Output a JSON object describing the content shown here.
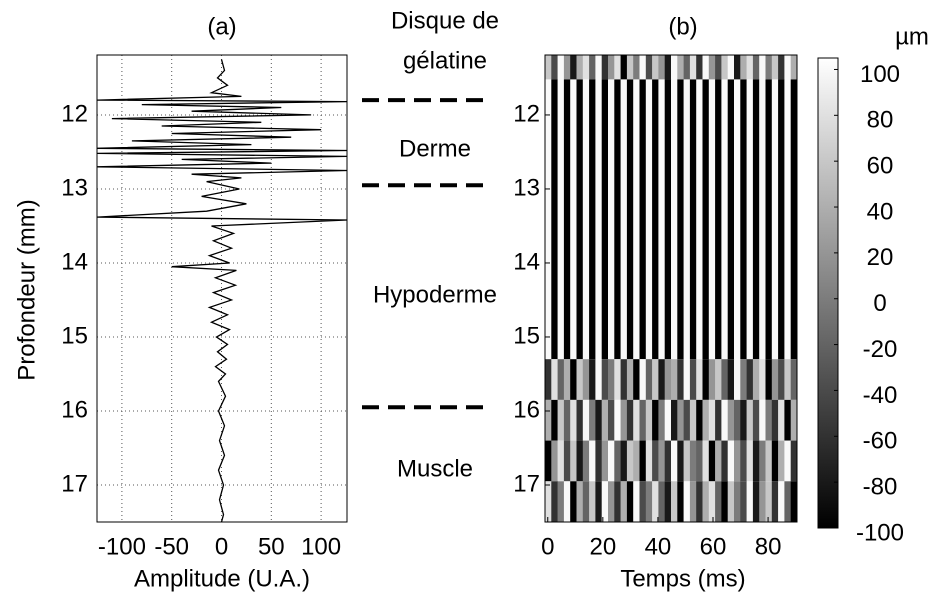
{
  "chart_data": [
    {
      "type": "line",
      "title": "(a)",
      "xlabel": "Amplitude (U.A.)",
      "ylabel": "Profondeur (mm)",
      "xlim": [
        -125,
        126
      ],
      "xticks": [
        -100,
        -50,
        0,
        50,
        100
      ],
      "ylim": [
        11.19,
        17.5
      ],
      "yticks": [
        12,
        13,
        14,
        15,
        16,
        17
      ],
      "grid": true,
      "color": "#000000",
      "x": [
        11.25,
        11.4,
        11.5,
        11.6,
        11.7,
        11.75,
        11.8,
        11.82,
        11.86,
        11.9,
        11.95,
        12.0,
        12.05,
        12.1,
        12.15,
        12.2,
        12.25,
        12.3,
        12.35,
        12.4,
        12.45,
        12.48,
        12.52,
        12.56,
        12.6,
        12.65,
        12.7,
        12.75,
        12.8,
        12.85,
        12.9,
        13.0,
        13.1,
        13.2,
        13.3,
        13.38,
        13.42,
        13.5,
        13.6,
        13.7,
        13.8,
        13.9,
        14.0,
        14.05,
        14.1,
        14.2,
        14.3,
        14.4,
        14.5,
        14.6,
        14.7,
        14.8,
        14.9,
        15.0,
        15.1,
        15.2,
        15.3,
        15.4,
        15.5,
        15.6,
        15.8,
        16.0,
        16.2,
        16.4,
        16.6,
        16.8,
        17.0,
        17.2,
        17.4,
        17.5
      ],
      "values": [
        0,
        3,
        -4,
        6,
        -10,
        20,
        -125,
        126,
        -80,
        60,
        -30,
        90,
        -110,
        40,
        -60,
        100,
        -50,
        70,
        -90,
        30,
        -125,
        126,
        -125,
        126,
        -40,
        50,
        -125,
        126,
        -30,
        20,
        -15,
        18,
        -20,
        25,
        -15,
        -125,
        126,
        -10,
        12,
        -8,
        10,
        -12,
        8,
        -50,
        15,
        -6,
        14,
        -8,
        10,
        -12,
        6,
        -10,
        8,
        -5,
        6,
        -4,
        5,
        -6,
        4,
        -3,
        4,
        -3,
        3,
        -2,
        3,
        -3,
        2,
        -2,
        2,
        0
      ],
      "annotations": [
        "Disque de",
        "gélatine",
        "Derme",
        "Hypoderme",
        "Muscle"
      ],
      "boundaries": [
        11.8,
        12.95,
        15.95
      ]
    },
    {
      "type": "heatmap",
      "title": "(b)",
      "xlabel": "Temps (ms)",
      "xlim": [
        -1,
        90.5
      ],
      "xticks": [
        0,
        20,
        40,
        60,
        80
      ],
      "ylim": [
        11.19,
        17.5
      ],
      "yticks": [
        12,
        13,
        14,
        15,
        16,
        17
      ],
      "y_edges": [
        11.19,
        11.52,
        15.3,
        15.85,
        16.4,
        16.95,
        17.5
      ],
      "z": [
        [
          60,
          -40,
          100,
          20,
          -80,
          40,
          80,
          -20,
          100,
          -60,
          20,
          80,
          -100,
          60,
          0,
          100,
          -40,
          60,
          20,
          -80,
          100,
          40,
          -20,
          80,
          -60,
          100,
          20,
          -40,
          60,
          100,
          -80,
          40,
          80,
          -20,
          100,
          0,
          60,
          -60,
          100,
          40
        ],
        [
          100,
          -100,
          100,
          -100,
          100,
          -100,
          100,
          -100,
          100,
          -100,
          100,
          -100,
          100,
          -100,
          100,
          -100,
          100,
          -100,
          100,
          -100,
          100,
          -100,
          100,
          -100,
          100,
          -100,
          100,
          -100,
          100,
          -100,
          100,
          -100,
          100,
          -100,
          100,
          -100,
          100,
          -100,
          100,
          -100
        ],
        [
          -60,
          80,
          -20,
          40,
          -100,
          60,
          20,
          -80,
          100,
          -40,
          0,
          80,
          -60,
          40,
          -100,
          100,
          -20,
          60,
          -80,
          20,
          40,
          -60,
          100,
          -40,
          80,
          -100,
          20,
          60,
          -20,
          -80,
          100,
          0,
          -60,
          40,
          80,
          -100,
          20,
          -40,
          60,
          -20
        ],
        [
          40,
          -100,
          60,
          -20,
          80,
          -60,
          100,
          0,
          -80,
          40,
          -40,
          100,
          20,
          -60,
          80,
          -20,
          60,
          -100,
          0,
          100,
          -80,
          20,
          -40,
          60,
          -100,
          40,
          80,
          -60,
          100,
          20,
          -20,
          -80,
          60,
          -40,
          100,
          0,
          -60,
          80,
          -100,
          40
        ],
        [
          -100,
          20,
          80,
          -40,
          60,
          -80,
          0,
          100,
          -60,
          20,
          100,
          -20,
          -80,
          60,
          40,
          -100,
          80,
          -40,
          20,
          -60,
          100,
          -80,
          60,
          0,
          -20,
          80,
          -100,
          40,
          -60,
          100,
          20,
          -40,
          80,
          -80,
          0,
          60,
          -100,
          40,
          100,
          -60
        ],
        [
          80,
          -60,
          0,
          100,
          -100,
          40,
          -20,
          60,
          -80,
          100,
          20,
          -60,
          40,
          -100,
          100,
          -40,
          0,
          80,
          -20,
          -80,
          60,
          -100,
          100,
          20,
          -60,
          40,
          80,
          -20,
          -100,
          60,
          0,
          -40,
          100,
          -80,
          20,
          60,
          -60,
          100,
          -20,
          -100
        ]
      ],
      "colorbar": {
        "label": "µm",
        "clim": [
          -100,
          105
        ],
        "ticks": [
          100,
          80,
          60,
          40,
          20,
          0,
          -20,
          -40,
          -60,
          -80,
          -100
        ]
      }
    }
  ]
}
